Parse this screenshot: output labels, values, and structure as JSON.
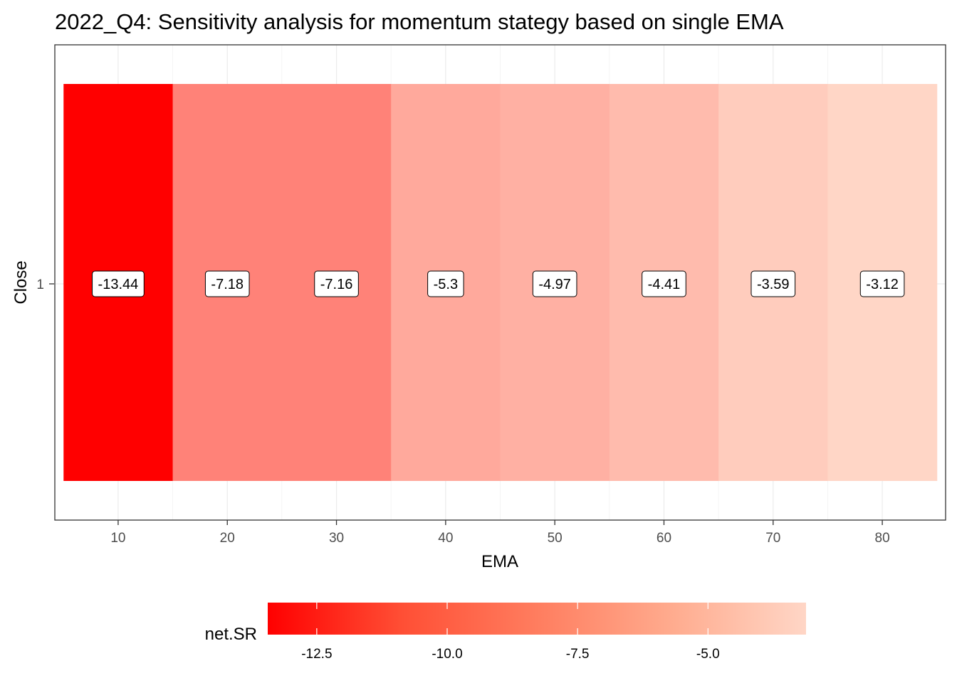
{
  "chart_data": {
    "type": "heatmap",
    "title": "2022_Q4: Sensitivity analysis for momentum stategy based on single EMA",
    "xlabel": "EMA",
    "ylabel": "Close",
    "x": [
      10,
      20,
      30,
      40,
      50,
      60,
      70,
      80
    ],
    "y": [
      1,
      1,
      1,
      1,
      1,
      1,
      1,
      1
    ],
    "values": [
      -13.44,
      -7.18,
      -7.16,
      -5.3,
      -4.97,
      -4.41,
      -3.59,
      -3.12
    ],
    "value_labels": [
      "-13.44",
      "-7.18",
      "-7.16",
      "-5.3",
      "-4.97",
      "-4.41",
      "-3.59",
      "-3.12"
    ],
    "x_ticks": [
      "10",
      "20",
      "30",
      "40",
      "50",
      "60",
      "70",
      "80"
    ],
    "y_ticks": [
      "1"
    ],
    "xlim": [
      4.2,
      85.8
    ],
    "grid": true,
    "colors": {
      "low": "#ff0000",
      "high": "#ffd6c6"
    },
    "legend": {
      "title": "net.SR",
      "placement": "bottom",
      "range": [
        -13.44,
        -3.12
      ],
      "ticks": [
        "-12.5",
        "-10.0",
        "-7.5",
        "-5.0"
      ],
      "tick_values": [
        -12.5,
        -10.0,
        -7.5,
        -5.0
      ]
    }
  }
}
